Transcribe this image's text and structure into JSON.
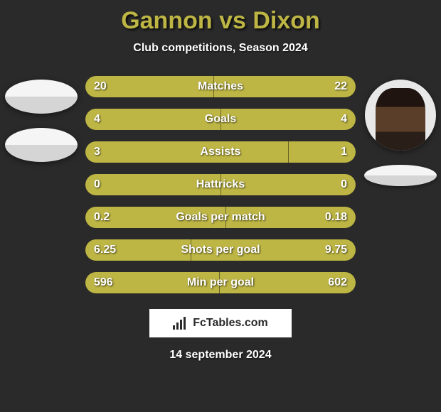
{
  "title": "Gannon vs Dixon",
  "subtitle": "Club competitions, Season 2024",
  "date": "14 september 2024",
  "logo_text": "FcTables.com",
  "colors": {
    "background": "#2a2a2a",
    "bar_fill": "#bdb544",
    "bar_bg": "#6a6625",
    "title_color": "#bdb544",
    "text_color": "#ffffff"
  },
  "players": {
    "left": {
      "name": "Gannon",
      "has_photo": false
    },
    "right": {
      "name": "Dixon",
      "has_photo": true
    }
  },
  "stats": [
    {
      "label": "Matches",
      "left_val": "20",
      "right_val": "22",
      "left_pct": 47.5,
      "right_pct": 52.5
    },
    {
      "label": "Goals",
      "left_val": "4",
      "right_val": "4",
      "left_pct": 50,
      "right_pct": 50
    },
    {
      "label": "Assists",
      "left_val": "3",
      "right_val": "1",
      "left_pct": 75,
      "right_pct": 25
    },
    {
      "label": "Hattricks",
      "left_val": "0",
      "right_val": "0",
      "left_pct": 50,
      "right_pct": 50
    },
    {
      "label": "Goals per match",
      "left_val": "0.2",
      "right_val": "0.18",
      "left_pct": 52,
      "right_pct": 48
    },
    {
      "label": "Shots per goal",
      "left_val": "6.25",
      "right_val": "9.75",
      "left_pct": 39,
      "right_pct": 61
    },
    {
      "label": "Min per goal",
      "left_val": "596",
      "right_val": "602",
      "left_pct": 49.5,
      "right_pct": 50.5
    }
  ]
}
